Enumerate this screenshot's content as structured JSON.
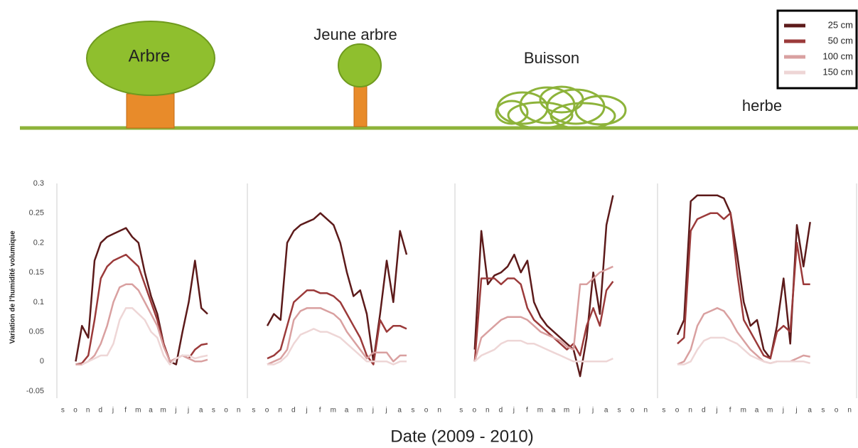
{
  "legend_position": "upper right",
  "x_label": "Date (2009 - 2010)",
  "y_label": "Variation de l'humidité volumique",
  "chart_data": [
    {
      "type": "line",
      "title": "Arbre",
      "x": [
        1,
        1.5,
        2,
        2.5,
        3,
        3.5,
        4,
        4.5,
        5,
        5.5,
        6,
        6.5,
        7,
        7.5,
        8,
        8.5,
        9,
        9.5,
        10,
        10.5,
        11,
        11.5
      ],
      "xlim": [
        -0.5,
        14.5
      ],
      "xticks": [
        {
          "value": 0,
          "label": "s"
        },
        {
          "value": 1,
          "label": "o"
        },
        {
          "value": 2,
          "label": "n"
        },
        {
          "value": 3,
          "label": "d"
        },
        {
          "value": 4,
          "label": "j"
        },
        {
          "value": 5,
          "label": "f"
        },
        {
          "value": 6,
          "label": "m"
        },
        {
          "value": 7,
          "label": "a"
        },
        {
          "value": 8,
          "label": "m"
        },
        {
          "value": 9,
          "label": "j"
        },
        {
          "value": 10,
          "label": "j"
        },
        {
          "value": 11,
          "label": "a"
        },
        {
          "value": 12,
          "label": "s"
        },
        {
          "value": 13,
          "label": "o"
        },
        {
          "value": 14,
          "label": "n"
        }
      ],
      "ylim": [
        -0.05,
        0.3
      ],
      "yticks": [
        -0.05,
        0,
        0.05,
        0.1,
        0.15,
        0.2,
        0.25,
        0.3
      ],
      "series": [
        {
          "name": "25 cm",
          "color": "#5c1a1a",
          "values": [
            0,
            0.06,
            0.04,
            0.17,
            0.2,
            0.21,
            0.215,
            0.22,
            0.225,
            0.21,
            0.2,
            0.15,
            0.11,
            0.08,
            0.03,
            0,
            -0.005,
            0.05,
            0.1,
            0.17,
            0.09,
            0.08
          ]
        },
        {
          "name": "50 cm",
          "color": "#9b3a3a",
          "values": [
            -0.005,
            -0.003,
            0.01,
            0.07,
            0.14,
            0.16,
            0.17,
            0.175,
            0.18,
            0.17,
            0.16,
            0.13,
            0.1,
            0.07,
            0.03,
            0,
            0.005,
            0.01,
            0.005,
            0.02,
            0.028,
            0.03
          ]
        },
        {
          "name": "100 cm",
          "color": "#d9a0a0",
          "values": [
            -0.005,
            -0.005,
            0,
            0.01,
            0.03,
            0.06,
            0.1,
            0.125,
            0.13,
            0.13,
            0.12,
            0.1,
            0.08,
            0.06,
            0.025,
            0,
            0.005,
            0.01,
            0.005,
            0,
            0,
            0.003
          ]
        },
        {
          "name": "150 cm",
          "color": "#eed6d6",
          "values": [
            null,
            -0.005,
            0,
            0.005,
            0.01,
            0.01,
            0.03,
            0.07,
            0.09,
            0.09,
            0.08,
            0.07,
            0.05,
            0.04,
            0.01,
            -0.005,
            0.005,
            0.01,
            0.01,
            0.005,
            0.008,
            0.01
          ]
        }
      ]
    },
    {
      "type": "line",
      "title": "Jeune arbre",
      "x": [
        1,
        1.5,
        2,
        2.5,
        3,
        3.5,
        4,
        4.5,
        5,
        5.5,
        6,
        6.5,
        7,
        7.5,
        8,
        8.5,
        9,
        9.5,
        10,
        10.5,
        11,
        11.5
      ],
      "xlim": [
        -0.5,
        14.5
      ],
      "xticks": [
        {
          "value": 0,
          "label": "s"
        },
        {
          "value": 1,
          "label": "o"
        },
        {
          "value": 2,
          "label": "n"
        },
        {
          "value": 3,
          "label": "d"
        },
        {
          "value": 4,
          "label": "j"
        },
        {
          "value": 5,
          "label": "f"
        },
        {
          "value": 6,
          "label": "m"
        },
        {
          "value": 7,
          "label": "a"
        },
        {
          "value": 8,
          "label": "m"
        },
        {
          "value": 9,
          "label": "j"
        },
        {
          "value": 10,
          "label": "j"
        },
        {
          "value": 11,
          "label": "a"
        },
        {
          "value": 12,
          "label": "s"
        },
        {
          "value": 13,
          "label": "o"
        },
        {
          "value": 14,
          "label": "n"
        }
      ],
      "ylim": [
        -0.05,
        0.3
      ],
      "series": [
        {
          "values": [
            0.06,
            0.08,
            0.07,
            0.2,
            0.22,
            0.23,
            0.235,
            0.24,
            0.25,
            0.24,
            0.23,
            0.2,
            0.15,
            0.11,
            0.12,
            0.08,
            0,
            0.08,
            0.17,
            0.1,
            0.22,
            0.18
          ]
        },
        {
          "values": [
            0.005,
            0.01,
            0.02,
            0.06,
            0.1,
            0.11,
            0.12,
            0.12,
            0.115,
            0.115,
            0.11,
            0.1,
            0.08,
            0.06,
            0.04,
            0.01,
            -0.005,
            0.07,
            0.05,
            0.06,
            0.06,
            0.055
          ]
        },
        {
          "values": [
            -0.005,
            0,
            0.005,
            0.02,
            0.07,
            0.085,
            0.09,
            0.09,
            0.09,
            0.085,
            0.08,
            0.07,
            0.05,
            0.035,
            0.02,
            0.005,
            0.015,
            0.015,
            0.015,
            0,
            0.01,
            0.01
          ]
        },
        {
          "values": [
            -0.005,
            -0.005,
            0,
            0.01,
            0.03,
            0.045,
            0.05,
            0.055,
            0.05,
            0.05,
            0.045,
            0.04,
            0.03,
            0.02,
            0.01,
            0,
            0,
            0,
            0,
            -0.005,
            0,
            0
          ]
        }
      ]
    },
    {
      "type": "line",
      "title": "Buisson",
      "x": [
        1,
        1.5,
        2,
        2.5,
        3,
        3.5,
        4,
        4.5,
        5,
        5.5,
        6,
        6.5,
        7,
        7.5,
        8,
        8.5,
        9,
        9.5,
        10,
        10.5,
        11,
        11.5
      ],
      "xlim": [
        -0.5,
        14.5
      ],
      "xticks": [
        {
          "value": 0,
          "label": "s"
        },
        {
          "value": 1,
          "label": "o"
        },
        {
          "value": 2,
          "label": "n"
        },
        {
          "value": 3,
          "label": "d"
        },
        {
          "value": 4,
          "label": "j"
        },
        {
          "value": 5,
          "label": "f"
        },
        {
          "value": 6,
          "label": "m"
        },
        {
          "value": 7,
          "label": "a"
        },
        {
          "value": 8,
          "label": "m"
        },
        {
          "value": 9,
          "label": "j"
        },
        {
          "value": 10,
          "label": "j"
        },
        {
          "value": 11,
          "label": "a"
        },
        {
          "value": 12,
          "label": "s"
        },
        {
          "value": 13,
          "label": "o"
        },
        {
          "value": 14,
          "label": "n"
        }
      ],
      "ylim": [
        -0.05,
        0.3
      ],
      "series": [
        {
          "values": [
            0.02,
            0.22,
            0.13,
            0.145,
            0.15,
            0.16,
            0.18,
            0.15,
            0.17,
            0.1,
            0.075,
            0.06,
            0.05,
            0.04,
            0.03,
            0.02,
            -0.025,
            0.04,
            0.15,
            0.08,
            0.23,
            0.28
          ]
        },
        {
          "values": [
            0,
            0.14,
            0.14,
            0.14,
            0.13,
            0.14,
            0.14,
            0.13,
            0.09,
            0.07,
            0.06,
            0.05,
            0.04,
            0.03,
            0.02,
            0.03,
            0.01,
            0.06,
            0.09,
            0.06,
            0.12,
            0.135
          ]
        },
        {
          "values": [
            0,
            0.04,
            0.05,
            0.06,
            0.07,
            0.075,
            0.075,
            0.075,
            0.07,
            0.06,
            0.05,
            0.045,
            0.04,
            0.035,
            0.025,
            0.02,
            0.13,
            0.13,
            0.14,
            0.15,
            0.155,
            0.16
          ]
        },
        {
          "values": [
            0,
            0.01,
            0.015,
            0.02,
            0.03,
            0.035,
            0.035,
            0.035,
            0.03,
            0.03,
            0.025,
            0.02,
            0.015,
            0.01,
            0.005,
            0,
            0,
            0,
            0,
            0,
            0,
            0.005
          ]
        }
      ]
    },
    {
      "type": "line",
      "title": "herbe",
      "x": [
        1,
        1.5,
        2,
        2.5,
        3,
        3.5,
        4,
        4.5,
        5,
        5.5,
        6,
        6.5,
        7,
        7.5,
        8,
        8.5,
        9,
        9.5,
        10,
        10.5,
        11,
        11.5
      ],
      "xlim": [
        -0.5,
        14.5
      ],
      "xticks": [
        {
          "value": 0,
          "label": "s"
        },
        {
          "value": 1,
          "label": "o"
        },
        {
          "value": 2,
          "label": "n"
        },
        {
          "value": 3,
          "label": "d"
        },
        {
          "value": 4,
          "label": "j"
        },
        {
          "value": 5,
          "label": "f"
        },
        {
          "value": 6,
          "label": "m"
        },
        {
          "value": 7,
          "label": "a"
        },
        {
          "value": 8,
          "label": "m"
        },
        {
          "value": 9,
          "label": "j"
        },
        {
          "value": 10,
          "label": "j"
        },
        {
          "value": 11,
          "label": "a"
        },
        {
          "value": 12,
          "label": "s"
        },
        {
          "value": 13,
          "label": "o"
        },
        {
          "value": 14,
          "label": "n"
        }
      ],
      "ylim": [
        -0.05,
        0.3
      ],
      "series": [
        {
          "values": [
            0.045,
            0.07,
            0.27,
            0.28,
            0.28,
            0.28,
            0.28,
            0.275,
            0.25,
            0.18,
            0.1,
            0.06,
            0.07,
            0.02,
            0.005,
            0.06,
            0.14,
            0.03,
            0.23,
            0.16,
            0.235,
            null
          ]
        },
        {
          "values": [
            0.03,
            0.04,
            0.22,
            0.24,
            0.245,
            0.25,
            0.25,
            0.24,
            0.25,
            0.15,
            0.07,
            0.05,
            0.03,
            0.01,
            0.005,
            0.05,
            0.06,
            0.05,
            0.2,
            0.13,
            0.13,
            null
          ]
        },
        {
          "values": [
            -0.005,
            0,
            0.02,
            0.06,
            0.08,
            0.085,
            0.09,
            0.085,
            0.07,
            0.05,
            0.035,
            0.02,
            0.01,
            0,
            -0.003,
            0,
            0,
            0,
            0.005,
            0.01,
            0.008,
            null
          ]
        },
        {
          "values": [
            -0.005,
            -0.005,
            0,
            0.02,
            0.035,
            0.04,
            0.04,
            0.04,
            0.035,
            0.03,
            0.02,
            0.01,
            0.005,
            0,
            -0.003,
            0,
            0,
            0,
            0,
            0,
            -0.003,
            null
          ]
        }
      ]
    }
  ]
}
